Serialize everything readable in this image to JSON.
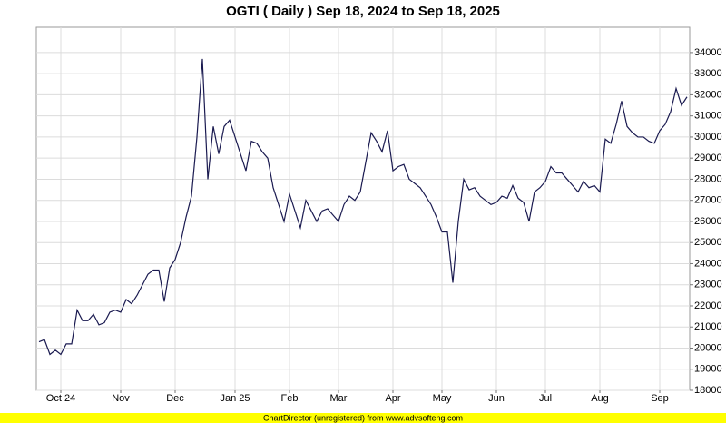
{
  "chart_data": {
    "type": "line",
    "title": "OGTI ( Daily ) Sep 18, 2024 to Sep 18, 2025",
    "footer": "ChartDirector (unregistered) from www.advsofteng.com",
    "color": "#1a1a50",
    "grid": true,
    "ylim": [
      18000,
      35200
    ],
    "yticks": [
      18000,
      19000,
      20000,
      21000,
      22000,
      23000,
      24000,
      25000,
      26000,
      27000,
      28000,
      29000,
      30000,
      31000,
      32000,
      33000,
      34000
    ],
    "categories": [
      null,
      null,
      null,
      null,
      "Oct 24",
      null,
      null,
      null,
      null,
      null,
      null,
      null,
      null,
      null,
      null,
      "Nov",
      null,
      null,
      null,
      null,
      null,
      null,
      null,
      null,
      null,
      "Dec",
      null,
      null,
      null,
      null,
      null,
      null,
      null,
      null,
      null,
      null,
      "Jan 25",
      null,
      null,
      null,
      null,
      null,
      null,
      null,
      null,
      null,
      "Feb",
      null,
      null,
      null,
      null,
      null,
      null,
      null,
      null,
      "Mar",
      null,
      null,
      null,
      null,
      null,
      null,
      null,
      null,
      null,
      "Apr",
      null,
      null,
      null,
      null,
      null,
      null,
      null,
      null,
      "May",
      null,
      null,
      null,
      null,
      null,
      null,
      null,
      null,
      null,
      "Jun",
      null,
      null,
      null,
      null,
      null,
      null,
      null,
      null,
      "Jul",
      null,
      null,
      null,
      null,
      null,
      null,
      null,
      null,
      null,
      "Aug",
      null,
      null,
      null,
      null,
      null,
      null,
      null,
      null,
      null,
      null,
      "Sep",
      null,
      null,
      null,
      null,
      null
    ],
    "values": [
      20300,
      20400,
      19700,
      19900,
      19700,
      20200,
      20200,
      21800,
      21300,
      21300,
      21600,
      21100,
      21200,
      21700,
      21800,
      21700,
      22300,
      22100,
      22500,
      23000,
      23500,
      23700,
      23700,
      22200,
      23800,
      24200,
      25000,
      26200,
      27200,
      30000,
      33700,
      28000,
      30500,
      29200,
      30500,
      30800,
      30000,
      29200,
      28400,
      29800,
      29700,
      29300,
      29000,
      27600,
      26800,
      26000,
      27300,
      26500,
      25700,
      27000,
      26500,
      26000,
      26500,
      26600,
      26300,
      26000,
      26800,
      27200,
      27000,
      27400,
      28800,
      30200,
      29800,
      29300,
      30300,
      28400,
      28600,
      28700,
      28000,
      27800,
      27600,
      27200,
      26800,
      26200,
      25500,
      25500,
      23100,
      26000,
      28000,
      27500,
      27600,
      27200,
      27000,
      26800,
      26900,
      27200,
      27100,
      27700,
      27100,
      26900,
      26000,
      27400,
      27600,
      27900,
      28600,
      28300,
      28300,
      28000,
      27700,
      27400,
      27900,
      27600,
      27700,
      27400,
      29900,
      29700,
      30600,
      31700,
      30500,
      30200,
      30000,
      30000,
      29800,
      29700,
      30300,
      30600,
      31200,
      32300,
      31500,
      31900
    ]
  }
}
